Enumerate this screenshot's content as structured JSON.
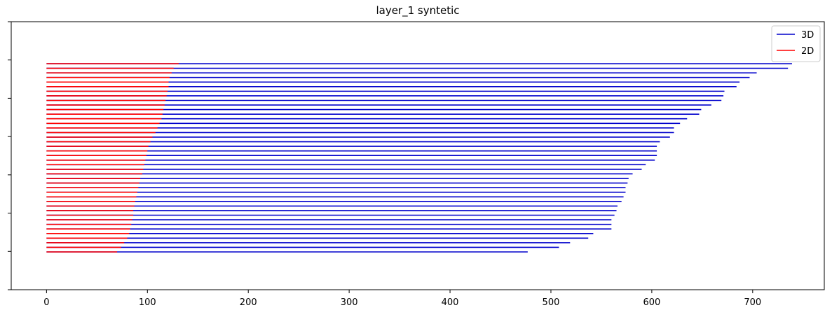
{
  "chart_data": {
    "type": "bar",
    "orientation": "horizontal",
    "title": "layer_1 syntetic",
    "xlabel": "",
    "ylabel": "",
    "xlim": [
      -35,
      771
    ],
    "xticks": [
      0,
      100,
      200,
      300,
      400,
      500,
      600,
      700
    ],
    "xtick_labels": [
      "0",
      "100",
      "200",
      "300",
      "400",
      "500",
      "600",
      "700"
    ],
    "ytick_count": 8,
    "grid": false,
    "legend_position": "top-right",
    "series": [
      {
        "name": "3D",
        "color": "#0000cc",
        "values": [
          739,
          735,
          704,
          697,
          687,
          684,
          672,
          671,
          669,
          659,
          649,
          647,
          635,
          628,
          622,
          622,
          618,
          608,
          605,
          605,
          605,
          603,
          594,
          590,
          581,
          577,
          576,
          574,
          574,
          572,
          570,
          566,
          565,
          563,
          560,
          560,
          560,
          542,
          537,
          519,
          508,
          477
        ]
      },
      {
        "name": "2D",
        "color": "#ff0000",
        "values": [
          131,
          126,
          124,
          122,
          121,
          121,
          120,
          119,
          118,
          117,
          116,
          115,
          114,
          112,
          110,
          108,
          105,
          103,
          101,
          100,
          99,
          98,
          97,
          96,
          95,
          93,
          92,
          91,
          90,
          89,
          88,
          87,
          86,
          86,
          85,
          84,
          83,
          82,
          80,
          77,
          74,
          70
        ]
      }
    ]
  }
}
